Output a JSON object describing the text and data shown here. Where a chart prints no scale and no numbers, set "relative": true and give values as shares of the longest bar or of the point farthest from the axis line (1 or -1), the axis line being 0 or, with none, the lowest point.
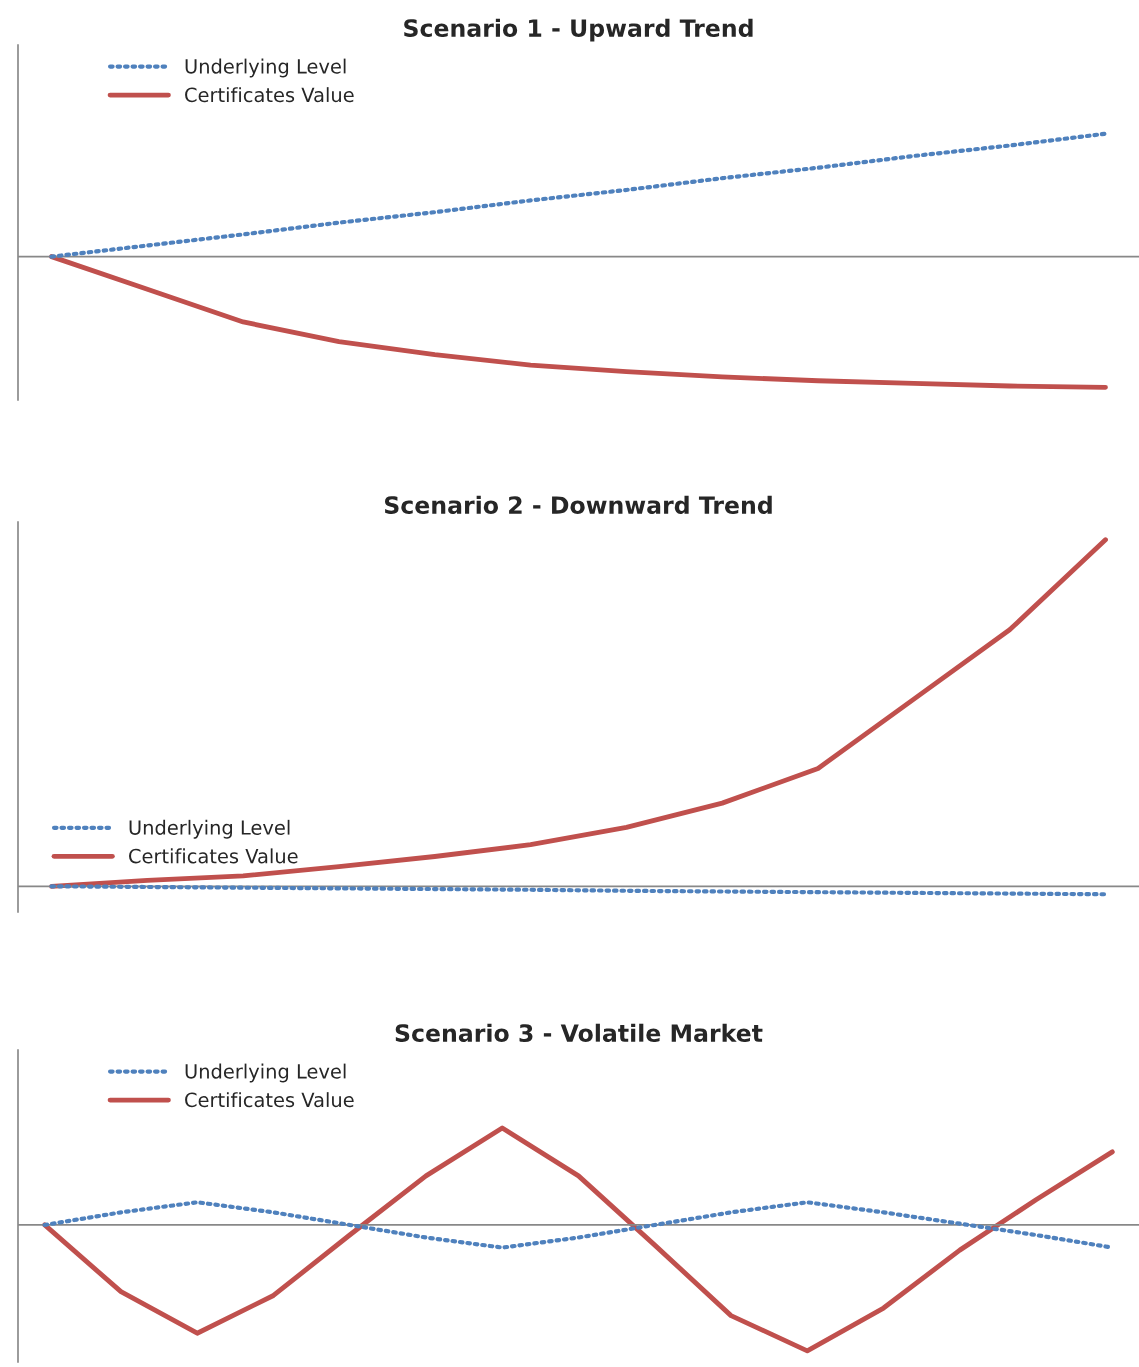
{
  "chart_data": [
    {
      "type": "line",
      "title": "Scenario 1 - Upward Trend",
      "relative": true,
      "legend": "top left",
      "categories": [
        null,
        null,
        null,
        null,
        null,
        null,
        null,
        null,
        null,
        null,
        null,
        null
      ],
      "series": [
        {
          "name": "Underlying Level",
          "color": "#4f81bd",
          "line_style": "dotted",
          "values": [
            0,
            0.085,
            0.17,
            0.26,
            0.34,
            0.43,
            0.51,
            0.6,
            0.68,
            0.77,
            0.85,
            0.94
          ]
        },
        {
          "name": "Certificates Value",
          "color": "#c0504d",
          "line_style": "solid",
          "values": [
            0,
            -0.25,
            -0.5,
            -0.65,
            -0.75,
            -0.83,
            -0.88,
            -0.92,
            -0.95,
            -0.97,
            -0.99,
            -1
          ]
        }
      ]
    },
    {
      "type": "line",
      "title": "Scenario 2 - Downward Trend",
      "relative": true,
      "legend": "bottom left",
      "categories": [
        null,
        null,
        null,
        null,
        null,
        null,
        null,
        null,
        null,
        null,
        null,
        null
      ],
      "series": [
        {
          "name": "Underlying Level",
          "color": "#4f81bd",
          "line_style": "dotted",
          "values": [
            0,
            -0.002,
            -0.004,
            -0.006,
            -0.008,
            -0.01,
            -0.013,
            -0.015,
            -0.017,
            -0.019,
            -0.021,
            -0.023
          ]
        },
        {
          "name": "Certificates Value",
          "color": "#c0504d",
          "line_style": "solid",
          "values": [
            0,
            0.017,
            0.03,
            0.057,
            0.086,
            0.12,
            0.17,
            0.24,
            0.34,
            0.54,
            0.74,
            1
          ]
        }
      ]
    },
    {
      "type": "line",
      "title": "Scenario 3 - Volatile Market",
      "relative": true,
      "legend": "top left",
      "categories": [
        null,
        null,
        null,
        null,
        null,
        null,
        null,
        null,
        null,
        null,
        null,
        null,
        null,
        null,
        null
      ],
      "series": [
        {
          "name": "Underlying Level",
          "color": "#4f81bd",
          "line_style": "dotted",
          "values": [
            0,
            0.1,
            0.18,
            0.1,
            0,
            -0.1,
            -0.18,
            -0.1,
            0,
            0.1,
            0.18,
            0.1,
            0.01,
            -0.08,
            -0.18
          ]
        },
        {
          "name": "Certificates Value",
          "color": "#c0504d",
          "line_style": "solid",
          "values": [
            0,
            -0.53,
            -0.86,
            -0.56,
            -0.08,
            0.39,
            0.77,
            0.39,
            -0.16,
            -0.72,
            -1,
            -0.66,
            -0.2,
            0.2,
            0.58
          ]
        }
      ]
    }
  ]
}
